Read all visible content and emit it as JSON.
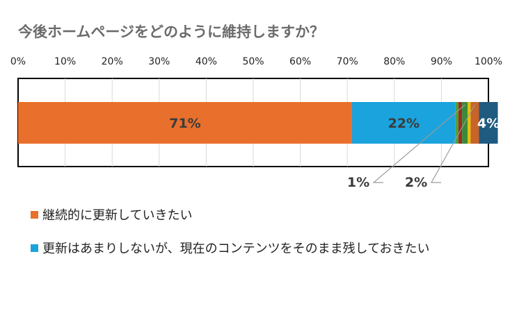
{
  "title": "今後ホームページをどのように維持しますか？",
  "chart_data": {
    "type": "bar",
    "orientation": "horizontal-stacked-100",
    "axis": {
      "ticks": [
        "0%",
        "10%",
        "20%",
        "30%",
        "40%",
        "50%",
        "60%",
        "70%",
        "80%",
        "90%",
        "100%"
      ],
      "xlim": [
        0,
        100
      ],
      "grid": true
    },
    "segments": [
      {
        "value": 71,
        "label": "71%",
        "color": "#e86f2c",
        "label_pos": "inside"
      },
      {
        "value": 22,
        "label": "22%",
        "color": "#1aa3dd",
        "label_pos": "inside"
      },
      {
        "value": 0.6,
        "label": "",
        "color": "#4aa338"
      },
      {
        "value": 0.8,
        "label": "",
        "color": "#9b2d1f"
      },
      {
        "value": 1.2,
        "label": "1%",
        "color": "#3a8a3a",
        "label_pos": "callout"
      },
      {
        "value": 0.6,
        "label": "",
        "color": "#e6c200"
      },
      {
        "value": 1.8,
        "label": "2%",
        "color": "#c8632a",
        "label_pos": "callout"
      },
      {
        "value": 4,
        "label": "4%",
        "color": "#1f5a80",
        "label_pos": "inside"
      }
    ]
  },
  "legend": [
    {
      "label": "継続的に更新していきたい",
      "color": "#e86f2c"
    },
    {
      "label": "更新はあまりしないが、現在のコンテンツをそのまま残しておきたい",
      "color": "#1aa3dd"
    }
  ]
}
